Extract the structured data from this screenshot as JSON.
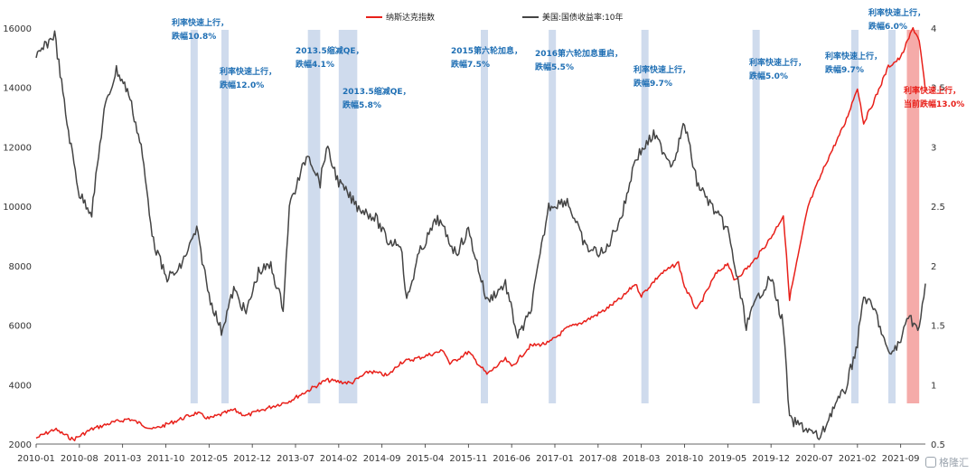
{
  "chart_data": {
    "type": "line",
    "legend": [
      {
        "name": "纳斯达克指数",
        "color": "#e8201a"
      },
      {
        "name": "美国:国债收益率:10年",
        "color": "#444444"
      }
    ],
    "xlim": [
      "2010-01",
      "2022-01"
    ],
    "x_tick_labels": [
      "2010-01",
      "2010-08",
      "2011-03",
      "2011-10",
      "2012-05",
      "2012-12",
      "2013-07",
      "2014-02",
      "2014-09",
      "2015-04",
      "2015-11",
      "2016-06",
      "2017-01",
      "2017-08",
      "2018-03",
      "2018-10",
      "2019-05",
      "2019-12",
      "2020-07",
      "2021-02",
      "2021-09"
    ],
    "y_left": {
      "lim": [
        2000,
        16000
      ],
      "ticks": [
        "2000",
        "4000",
        "6000",
        "8000",
        "10000",
        "12000",
        "14000",
        "16000"
      ]
    },
    "y_right": {
      "lim": [
        0.5,
        4
      ],
      "ticks": [
        "0.5",
        "1",
        "1.5",
        "2",
        "2.5",
        "3",
        "3.5",
        "4"
      ]
    },
    "series": [
      {
        "name": "纳斯达克指数",
        "axis": "left",
        "color": "#e8201a",
        "points": [
          [
            "2010-01",
            2200
          ],
          [
            "2010-04",
            2500
          ],
          [
            "2010-07",
            2150
          ],
          [
            "2010-10",
            2500
          ],
          [
            "2011-01",
            2700
          ],
          [
            "2011-04",
            2850
          ],
          [
            "2011-08",
            2500
          ],
          [
            "2011-10",
            2650
          ],
          [
            "2012-03",
            3050
          ],
          [
            "2012-05",
            2850
          ],
          [
            "2012-09",
            3150
          ],
          [
            "2012-11",
            2950
          ],
          [
            "2013-03",
            3250
          ],
          [
            "2013-06",
            3450
          ],
          [
            "2013-09",
            3800
          ],
          [
            "2013-12",
            4150
          ],
          [
            "2014-04",
            4050
          ],
          [
            "2014-07",
            4450
          ],
          [
            "2014-10",
            4300
          ],
          [
            "2014-12",
            4750
          ],
          [
            "2015-03",
            4900
          ],
          [
            "2015-07",
            5150
          ],
          [
            "2015-08",
            4700
          ],
          [
            "2015-11",
            5100
          ],
          [
            "2016-02",
            4350
          ],
          [
            "2016-05",
            4850
          ],
          [
            "2016-06",
            4600
          ],
          [
            "2016-09",
            5300
          ],
          [
            "2016-12",
            5400
          ],
          [
            "2017-03",
            5900
          ],
          [
            "2017-06",
            6150
          ],
          [
            "2017-09",
            6500
          ],
          [
            "2017-12",
            6950
          ],
          [
            "2018-02",
            7400
          ],
          [
            "2018-03",
            7000
          ],
          [
            "2018-06",
            7700
          ],
          [
            "2018-09",
            8100
          ],
          [
            "2018-10",
            7300
          ],
          [
            "2018-12",
            6500
          ],
          [
            "2019-03",
            7700
          ],
          [
            "2019-05",
            8100
          ],
          [
            "2019-06",
            7500
          ],
          [
            "2019-09",
            8100
          ],
          [
            "2019-12",
            8950
          ],
          [
            "2020-02",
            9700
          ],
          [
            "2020-03",
            6900
          ],
          [
            "2020-06",
            10000
          ],
          [
            "2020-09",
            11500
          ],
          [
            "2020-12",
            12800
          ],
          [
            "2021-02",
            14000
          ],
          [
            "2021-03",
            12800
          ],
          [
            "2021-05",
            13700
          ],
          [
            "2021-07",
            14700
          ],
          [
            "2021-09",
            15000
          ],
          [
            "2021-11",
            16000
          ],
          [
            "2021-12",
            15600
          ],
          [
            "2022-01",
            13900
          ]
        ]
      },
      {
        "name": "美国:国债收益率:10年",
        "axis": "right",
        "color": "#444444",
        "points": [
          [
            "2010-01",
            3.75
          ],
          [
            "2010-04",
            3.95
          ],
          [
            "2010-06",
            3.2
          ],
          [
            "2010-08",
            2.6
          ],
          [
            "2010-10",
            2.45
          ],
          [
            "2010-12",
            3.3
          ],
          [
            "2011-02",
            3.65
          ],
          [
            "2011-04",
            3.45
          ],
          [
            "2011-06",
            3.0
          ],
          [
            "2011-08",
            2.2
          ],
          [
            "2011-10",
            1.9
          ],
          [
            "2011-12",
            1.95
          ],
          [
            "2012-03",
            2.3
          ],
          [
            "2012-05",
            1.75
          ],
          [
            "2012-07",
            1.45
          ],
          [
            "2012-09",
            1.8
          ],
          [
            "2012-11",
            1.6
          ],
          [
            "2013-01",
            1.95
          ],
          [
            "2013-03",
            2.0
          ],
          [
            "2013-05",
            1.65
          ],
          [
            "2013-06",
            2.5
          ],
          [
            "2013-09",
            2.95
          ],
          [
            "2013-11",
            2.7
          ],
          [
            "2013-12",
            3.0
          ],
          [
            "2014-02",
            2.7
          ],
          [
            "2014-05",
            2.5
          ],
          [
            "2014-08",
            2.4
          ],
          [
            "2014-10",
            2.2
          ],
          [
            "2014-12",
            2.2
          ],
          [
            "2015-01",
            1.7
          ],
          [
            "2015-03",
            2.1
          ],
          [
            "2015-06",
            2.4
          ],
          [
            "2015-09",
            2.1
          ],
          [
            "2015-11",
            2.3
          ],
          [
            "2016-02",
            1.7
          ],
          [
            "2016-05",
            1.85
          ],
          [
            "2016-07",
            1.4
          ],
          [
            "2016-09",
            1.6
          ],
          [
            "2016-12",
            2.5
          ],
          [
            "2017-03",
            2.55
          ],
          [
            "2017-06",
            2.15
          ],
          [
            "2017-09",
            2.1
          ],
          [
            "2017-12",
            2.45
          ],
          [
            "2018-02",
            2.9
          ],
          [
            "2018-05",
            3.1
          ],
          [
            "2018-08",
            2.85
          ],
          [
            "2018-10",
            3.2
          ],
          [
            "2018-12",
            2.7
          ],
          [
            "2019-03",
            2.45
          ],
          [
            "2019-05",
            2.3
          ],
          [
            "2019-08",
            1.5
          ],
          [
            "2019-10",
            1.75
          ],
          [
            "2019-12",
            1.9
          ],
          [
            "2020-02",
            1.5
          ],
          [
            "2020-03",
            0.7
          ],
          [
            "2020-05",
            0.65
          ],
          [
            "2020-08",
            0.55
          ],
          [
            "2020-10",
            0.8
          ],
          [
            "2020-12",
            0.95
          ],
          [
            "2021-02",
            1.35
          ],
          [
            "2021-03",
            1.75
          ],
          [
            "2021-05",
            1.6
          ],
          [
            "2021-07",
            1.25
          ],
          [
            "2021-09",
            1.35
          ],
          [
            "2021-10",
            1.6
          ],
          [
            "2021-12",
            1.45
          ],
          [
            "2022-01",
            1.85
          ]
        ]
      }
    ],
    "shaded_periods": [
      {
        "start": "2012-02",
        "end": "2012-03",
        "color": "blue",
        "label": [
          "利率快速上行，",
          "跌幅10.8%"
        ]
      },
      {
        "start": "2012-07",
        "end": "2012-08",
        "color": "blue",
        "label": [
          "利率快速上行，",
          "跌幅12.0%"
        ]
      },
      {
        "start": "2013-09",
        "end": "2013-11",
        "color": "blue",
        "label": [
          "2013.5缩减QE，",
          "跌幅4.1%"
        ]
      },
      {
        "start": "2014-02",
        "end": "2014-05",
        "color": "blue",
        "label": [
          "2013.5缩减QE，",
          "跌幅5.8%"
        ]
      },
      {
        "start": "2016-01",
        "end": "2016-02",
        "color": "blue",
        "label": [
          "2015第六轮加息，",
          "跌幅7.5%"
        ]
      },
      {
        "start": "2016-12",
        "end": "2017-01",
        "color": "blue",
        "label": [
          "2016第六轮加息重启，",
          "跌幅5.5%"
        ]
      },
      {
        "start": "2018-03",
        "end": "2018-04",
        "color": "blue",
        "label": [
          "利率快速上行，",
          "跌幅9.7%"
        ]
      },
      {
        "start": "2019-09",
        "end": "2019-10",
        "color": "blue",
        "label": [
          "利率快速上行，",
          "跌幅5.0%"
        ]
      },
      {
        "start": "2021-01",
        "end": "2021-02",
        "color": "blue",
        "label": [
          "利率快速上行，",
          "跌幅9.7%"
        ]
      },
      {
        "start": "2021-07",
        "end": "2021-08",
        "color": "blue",
        "label": [
          "利率快速上行，",
          "跌幅6.0%"
        ]
      },
      {
        "start": "2021-10",
        "end": "2021-12",
        "color": "red",
        "label": [
          "利率快速上行，",
          "当前跌幅13.0%"
        ]
      }
    ],
    "grid": false,
    "legend_position": "top-center"
  },
  "watermark": "格隆汇"
}
